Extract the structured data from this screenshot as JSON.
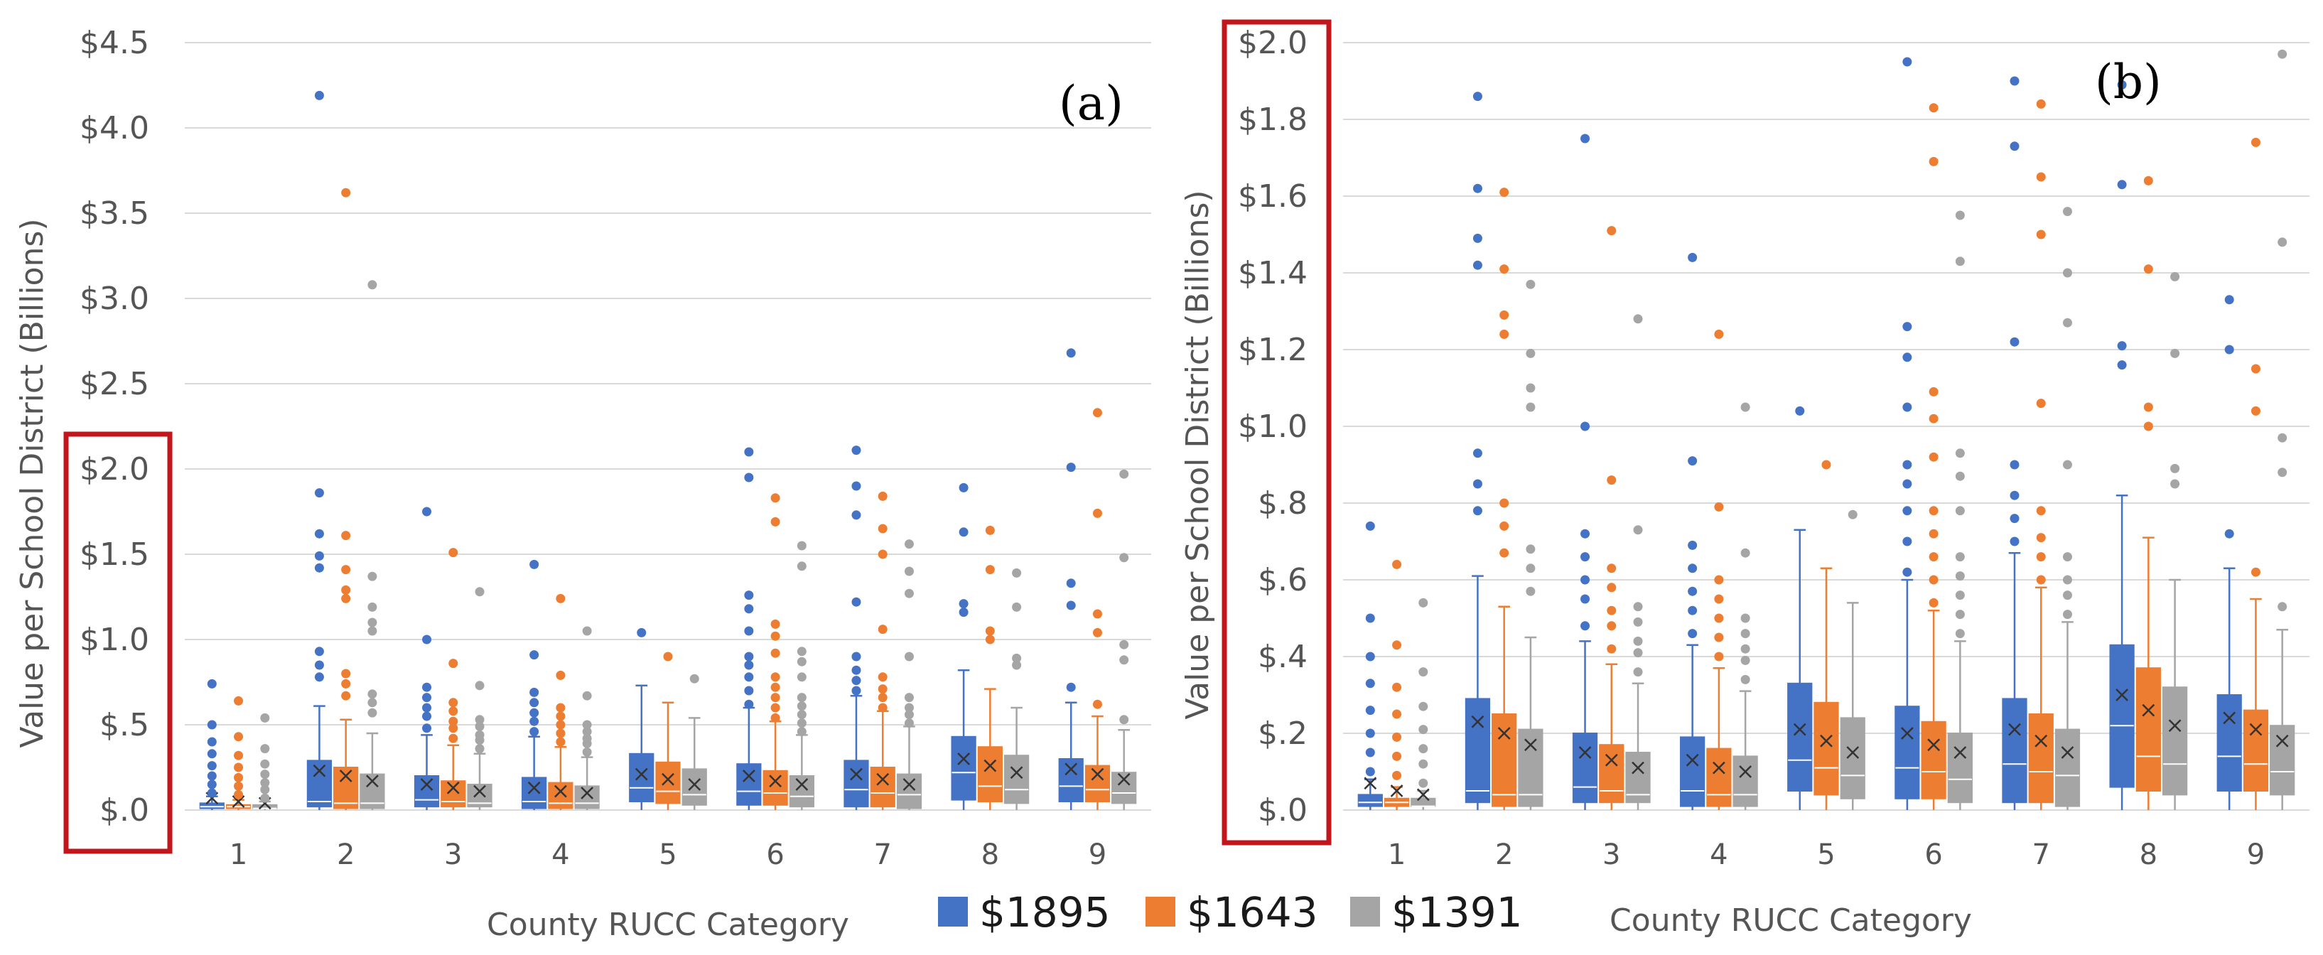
{
  "legend": [
    {
      "name": "$1895",
      "color": "#4472c4"
    },
    {
      "name": "$1643",
      "color": "#ed7d31"
    },
    {
      "name": "$1391",
      "color": "#a5a5a5"
    }
  ],
  "chart_data": [
    {
      "type": "box",
      "panel_label": "(a)",
      "xlabel": "County RUCC Category",
      "ylabel": "Value per School District (Billions)",
      "ylim": [
        0,
        4.5
      ],
      "yticks": [
        0,
        0.5,
        1.0,
        1.5,
        2.0,
        2.5,
        3.0,
        3.5,
        4.0,
        4.5
      ],
      "ytick_labels": [
        "$.0",
        "$.5",
        "$1.0",
        "$1.5",
        "$2.0",
        "$2.5",
        "$3.0",
        "$3.5",
        "$4.0",
        "$4.5"
      ],
      "highlighted_ticks": [
        "$.0",
        "$.5",
        "$1.0",
        "$1.5",
        "$2.0"
      ],
      "categories": [
        "1",
        "2",
        "3",
        "4",
        "5",
        "6",
        "7",
        "8",
        "9"
      ],
      "grid": true,
      "series": [
        {
          "name": "$1895",
          "boxes": [
            {
              "min": 0,
              "q1": 0.01,
              "median": 0.02,
              "q3": 0.04,
              "max": 0.08,
              "mean": 0.07,
              "outliers": [
                0.1,
                0.15,
                0.2,
                0.26,
                0.33,
                0.4,
                0.5,
                0.74
              ]
            },
            {
              "min": 0,
              "q1": 0.02,
              "median": 0.05,
              "q3": 0.29,
              "max": 0.61,
              "mean": 0.23,
              "outliers": [
                0.78,
                0.85,
                0.93,
                1.42,
                1.49,
                1.62,
                1.86,
                4.19
              ]
            },
            {
              "min": 0,
              "q1": 0.02,
              "median": 0.06,
              "q3": 0.2,
              "max": 0.44,
              "mean": 0.15,
              "outliers": [
                0.48,
                0.55,
                0.6,
                0.66,
                0.72,
                1.0,
                1.75
              ]
            },
            {
              "min": 0,
              "q1": 0.01,
              "median": 0.05,
              "q3": 0.19,
              "max": 0.43,
              "mean": 0.13,
              "outliers": [
                0.46,
                0.52,
                0.57,
                0.63,
                0.69,
                0.91,
                1.44
              ]
            },
            {
              "min": 0,
              "q1": 0.05,
              "median": 0.13,
              "q3": 0.33,
              "max": 0.73,
              "mean": 0.21,
              "outliers": [
                1.04
              ]
            },
            {
              "min": 0,
              "q1": 0.03,
              "median": 0.11,
              "q3": 0.27,
              "max": 0.6,
              "mean": 0.2,
              "outliers": [
                0.62,
                0.7,
                0.78,
                0.85,
                0.9,
                1.05,
                1.18,
                1.26,
                1.95,
                2.1
              ]
            },
            {
              "min": 0,
              "q1": 0.02,
              "median": 0.12,
              "q3": 0.29,
              "max": 0.67,
              "mean": 0.21,
              "outliers": [
                0.7,
                0.76,
                0.82,
                0.9,
                1.22,
                1.73,
                1.9,
                2.11
              ]
            },
            {
              "min": 0,
              "q1": 0.06,
              "median": 0.22,
              "q3": 0.43,
              "max": 0.82,
              "mean": 0.3,
              "outliers": [
                1.16,
                1.21,
                1.63,
                1.89
              ]
            },
            {
              "min": 0,
              "q1": 0.05,
              "median": 0.14,
              "q3": 0.3,
              "max": 0.63,
              "mean": 0.24,
              "outliers": [
                0.72,
                1.2,
                1.33,
                2.01,
                2.68
              ]
            }
          ]
        },
        {
          "name": "$1643",
          "boxes": [
            {
              "min": 0,
              "q1": 0.01,
              "median": 0.02,
              "q3": 0.03,
              "max": 0.06,
              "mean": 0.05,
              "outliers": [
                0.09,
                0.14,
                0.19,
                0.25,
                0.32,
                0.43,
                0.64
              ]
            },
            {
              "min": 0,
              "q1": 0.01,
              "median": 0.04,
              "q3": 0.25,
              "max": 0.53,
              "mean": 0.2,
              "outliers": [
                0.67,
                0.74,
                0.8,
                1.24,
                1.29,
                1.41,
                1.61,
                3.62
              ]
            },
            {
              "min": 0,
              "q1": 0.02,
              "median": 0.05,
              "q3": 0.17,
              "max": 0.38,
              "mean": 0.13,
              "outliers": [
                0.42,
                0.48,
                0.52,
                0.58,
                0.63,
                0.86,
                1.51
              ]
            },
            {
              "min": 0,
              "q1": 0.01,
              "median": 0.04,
              "q3": 0.16,
              "max": 0.37,
              "mean": 0.11,
              "outliers": [
                0.4,
                0.45,
                0.5,
                0.55,
                0.6,
                0.79,
                1.24
              ]
            },
            {
              "min": 0,
              "q1": 0.04,
              "median": 0.11,
              "q3": 0.28,
              "max": 0.63,
              "mean": 0.18,
              "outliers": [
                0.9
              ]
            },
            {
              "min": 0,
              "q1": 0.03,
              "median": 0.1,
              "q3": 0.23,
              "max": 0.52,
              "mean": 0.17,
              "outliers": [
                0.54,
                0.6,
                0.66,
                0.72,
                0.78,
                0.92,
                1.02,
                1.09,
                1.69,
                1.83
              ]
            },
            {
              "min": 0,
              "q1": 0.02,
              "median": 0.1,
              "q3": 0.25,
              "max": 0.58,
              "mean": 0.18,
              "outliers": [
                0.6,
                0.66,
                0.71,
                0.78,
                1.06,
                1.5,
                1.65,
                1.84
              ]
            },
            {
              "min": 0,
              "q1": 0.05,
              "median": 0.14,
              "q3": 0.37,
              "max": 0.71,
              "mean": 0.26,
              "outliers": [
                1.0,
                1.05,
                1.41,
                1.64
              ]
            },
            {
              "min": 0,
              "q1": 0.05,
              "median": 0.12,
              "q3": 0.26,
              "max": 0.55,
              "mean": 0.21,
              "outliers": [
                0.62,
                1.04,
                1.15,
                1.74,
                2.33
              ]
            }
          ]
        },
        {
          "name": "$1391",
          "boxes": [
            {
              "min": 0,
              "q1": 0.01,
              "median": 0.01,
              "q3": 0.03,
              "max": 0.05,
              "mean": 0.04,
              "outliers": [
                0.07,
                0.12,
                0.16,
                0.21,
                0.27,
                0.36,
                0.54
              ]
            },
            {
              "min": 0,
              "q1": 0.01,
              "median": 0.04,
              "q3": 0.21,
              "max": 0.45,
              "mean": 0.17,
              "outliers": [
                0.57,
                0.63,
                0.68,
                1.05,
                1.1,
                1.19,
                1.37,
                3.08
              ]
            },
            {
              "min": 0,
              "q1": 0.02,
              "median": 0.04,
              "q3": 0.15,
              "max": 0.33,
              "mean": 0.11,
              "outliers": [
                0.36,
                0.41,
                0.44,
                0.49,
                0.53,
                0.73,
                1.28
              ]
            },
            {
              "min": 0,
              "q1": 0.01,
              "median": 0.04,
              "q3": 0.14,
              "max": 0.31,
              "mean": 0.1,
              "outliers": [
                0.34,
                0.39,
                0.42,
                0.46,
                0.5,
                0.67,
                1.05
              ]
            },
            {
              "min": 0,
              "q1": 0.03,
              "median": 0.09,
              "q3": 0.24,
              "max": 0.54,
              "mean": 0.15,
              "outliers": [
                0.77
              ]
            },
            {
              "min": 0,
              "q1": 0.02,
              "median": 0.08,
              "q3": 0.2,
              "max": 0.44,
              "mean": 0.15,
              "outliers": [
                0.46,
                0.51,
                0.56,
                0.61,
                0.66,
                0.78,
                0.87,
                0.93,
                1.43,
                1.55
              ]
            },
            {
              "min": 0,
              "q1": 0.01,
              "median": 0.09,
              "q3": 0.21,
              "max": 0.49,
              "mean": 0.15,
              "outliers": [
                0.51,
                0.56,
                0.6,
                0.66,
                0.9,
                1.27,
                1.4,
                1.56
              ]
            },
            {
              "min": 0,
              "q1": 0.04,
              "median": 0.12,
              "q3": 0.32,
              "max": 0.6,
              "mean": 0.22,
              "outliers": [
                0.85,
                0.89,
                1.19,
                1.39
              ]
            },
            {
              "min": 0,
              "q1": 0.04,
              "median": 0.1,
              "q3": 0.22,
              "max": 0.47,
              "mean": 0.18,
              "outliers": [
                0.53,
                0.88,
                0.97,
                1.48,
                1.97
              ]
            }
          ]
        }
      ]
    },
    {
      "type": "box",
      "panel_label": "(b)",
      "xlabel": "County RUCC Category",
      "ylabel": "Value per School District (Billions)",
      "ylim": [
        0,
        2.0
      ],
      "yticks": [
        0,
        0.2,
        0.4,
        0.6,
        0.8,
        1.0,
        1.2,
        1.4,
        1.6,
        1.8,
        2.0
      ],
      "ytick_labels": [
        "$.0",
        "$.2",
        "$.4",
        "$.6",
        "$.8",
        "$1.0",
        "$1.2",
        "$1.4",
        "$1.6",
        "$1.8",
        "$2.0"
      ],
      "highlighted_ticks": [
        "$.0",
        "$.2",
        "$.4",
        "$.6",
        "$.8",
        "$1.0",
        "$1.2",
        "$1.4",
        "$1.6",
        "$1.8",
        "$2.0"
      ],
      "categories": [
        "1",
        "2",
        "3",
        "4",
        "5",
        "6",
        "7",
        "8",
        "9"
      ],
      "grid": true,
      "series_same_as_panel": "(a)"
    }
  ]
}
